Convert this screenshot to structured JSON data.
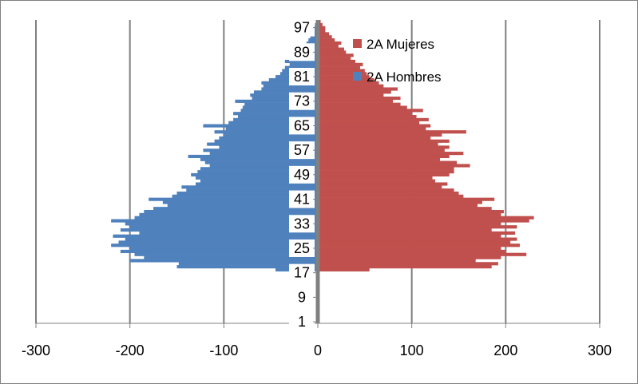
{
  "chart_data": {
    "type": "bar",
    "orientation": "horizontal",
    "chart_style": "population-pyramid",
    "colors": {
      "men": "#4F81BD",
      "women": "#C0504D",
      "axis": "#808080"
    },
    "grid": "vertical-major",
    "legend_position": "inside-top-center-right",
    "xlim": [
      -300,
      300
    ],
    "x_ticks": [
      "-300",
      "-200",
      "-100",
      "0",
      "100",
      "200",
      "300"
    ],
    "y_ticks": [
      "97",
      "89",
      "81",
      "73",
      "65",
      "57",
      "49",
      "41",
      "33",
      "25",
      "17",
      "9",
      "1"
    ],
    "ages": [
      1,
      2,
      3,
      4,
      5,
      6,
      7,
      8,
      9,
      10,
      11,
      12,
      13,
      14,
      15,
      16,
      17,
      18,
      19,
      20,
      21,
      22,
      23,
      24,
      25,
      26,
      27,
      28,
      29,
      30,
      31,
      32,
      33,
      34,
      35,
      36,
      37,
      38,
      39,
      40,
      41,
      42,
      43,
      44,
      45,
      46,
      47,
      48,
      49,
      50,
      51,
      52,
      53,
      54,
      55,
      56,
      57,
      58,
      59,
      60,
      61,
      62,
      63,
      64,
      65,
      66,
      67,
      68,
      69,
      70,
      71,
      72,
      73,
      74,
      75,
      76,
      77,
      78,
      79,
      80,
      81,
      82,
      83,
      84,
      85,
      86,
      87,
      88,
      89,
      90,
      91,
      92,
      93,
      94,
      95,
      96,
      97,
      98,
      99
    ],
    "series": [
      {
        "name": "2A Mujeres",
        "values": [
          1,
          1,
          1,
          1,
          1,
          1,
          1,
          1,
          1,
          1,
          1,
          1,
          1,
          1,
          1,
          1,
          1,
          55,
          185,
          192,
          168,
          195,
          222,
          200,
          195,
          215,
          205,
          212,
          195,
          210,
          185,
          212,
          195,
          225,
          230,
          195,
          198,
          185,
          170,
          175,
          188,
          155,
          150,
          145,
          132,
          138,
          125,
          122,
          140,
          145,
          145,
          162,
          148,
          130,
          140,
          155,
          135,
          140,
          128,
          140,
          120,
          132,
          158,
          115,
          120,
          108,
          118,
          105,
          100,
          112,
          95,
          88,
          80,
          88,
          70,
          78,
          85,
          70,
          65,
          60,
          55,
          52,
          50,
          45,
          48,
          40,
          35,
          38,
          30,
          28,
          22,
          25,
          18,
          15,
          12,
          8,
          8,
          5,
          3
        ]
      },
      {
        "name": "2A Hombres",
        "values": [
          -1,
          -1,
          -1,
          -1,
          -1,
          -1,
          -1,
          -1,
          -1,
          -1,
          -1,
          -1,
          -1,
          -1,
          -1,
          -1,
          -1,
          -45,
          -150,
          -148,
          -200,
          -185,
          -195,
          -210,
          -200,
          -220,
          -212,
          -205,
          -218,
          -190,
          -210,
          -200,
          -205,
          -220,
          -195,
          -190,
          -185,
          -175,
          -160,
          -165,
          -180,
          -155,
          -150,
          -140,
          -145,
          -130,
          -125,
          -130,
          -135,
          -128,
          -125,
          -115,
          -120,
          -125,
          -138,
          -115,
          -122,
          -105,
          -118,
          -110,
          -105,
          -100,
          -110,
          -98,
          -122,
          -95,
          -90,
          -85,
          -90,
          -82,
          -80,
          -78,
          -88,
          -70,
          -72,
          -68,
          -60,
          -58,
          -60,
          -52,
          -45,
          -40,
          -38,
          -35,
          -30,
          -35,
          -28,
          -22,
          -18,
          -20,
          -15,
          -12,
          -10,
          -8,
          -6,
          -5,
          -4,
          -3,
          -2
        ]
      }
    ]
  }
}
